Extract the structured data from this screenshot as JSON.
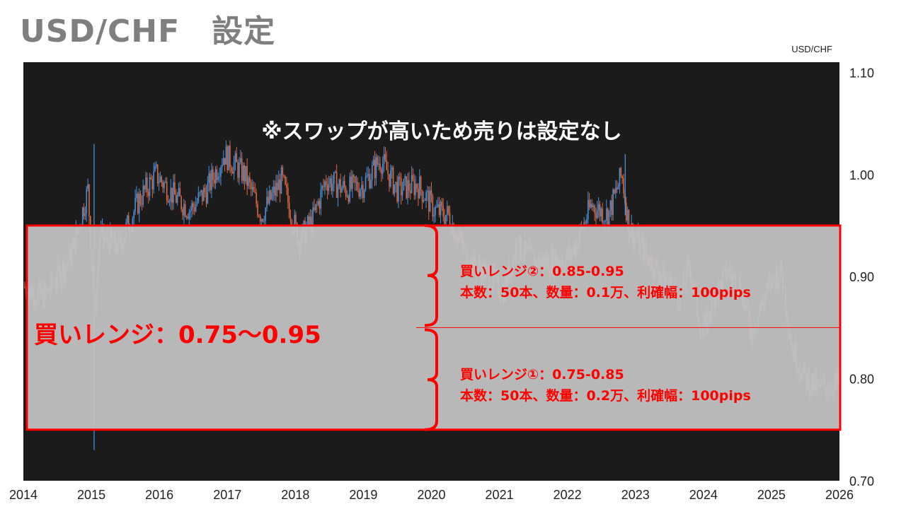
{
  "title": "USD/CHF　設定",
  "chart_data": {
    "type": "candlestick",
    "symbol_label": "USD/CHF",
    "x_ticks": [
      "2014",
      "2015",
      "2016",
      "2017",
      "2018",
      "2019",
      "2020",
      "2021",
      "2022",
      "2023",
      "2024",
      "2025",
      "2026"
    ],
    "xlim": [
      2014,
      2026
    ],
    "y_ticks": [
      "0.70",
      "0.80",
      "0.90",
      "1.00",
      "1.10"
    ],
    "ylim": [
      0.7,
      1.11
    ],
    "grid": false,
    "colors": {
      "background": "#1b1b1b",
      "up": "#4a8fd6",
      "down": "#d9673f",
      "overlay": "#c4c4c4",
      "range": "#ff0000"
    },
    "price_path": [
      [
        2014.0,
        0.89
      ],
      [
        2014.3,
        0.88
      ],
      [
        2014.7,
        0.92
      ],
      [
        2014.95,
        0.985
      ],
      [
        2015.05,
        0.86
      ],
      [
        2015.12,
        0.94
      ],
      [
        2015.4,
        0.93
      ],
      [
        2015.7,
        0.975
      ],
      [
        2015.95,
        1.0
      ],
      [
        2016.2,
        0.98
      ],
      [
        2016.45,
        0.965
      ],
      [
        2016.7,
        0.985
      ],
      [
        2016.95,
        1.02
      ],
      [
        2017.25,
        1.0
      ],
      [
        2017.5,
        0.96
      ],
      [
        2017.8,
        0.995
      ],
      [
        2018.05,
        0.935
      ],
      [
        2018.25,
        0.955
      ],
      [
        2018.45,
        0.995
      ],
      [
        2018.75,
        0.985
      ],
      [
        2019.0,
        0.99
      ],
      [
        2019.25,
        1.015
      ],
      [
        2019.5,
        0.985
      ],
      [
        2019.8,
        0.99
      ],
      [
        2020.05,
        0.965
      ],
      [
        2020.25,
        0.96
      ],
      [
        2020.55,
        0.915
      ],
      [
        2020.85,
        0.9
      ],
      [
        2021.05,
        0.885
      ],
      [
        2021.25,
        0.93
      ],
      [
        2021.5,
        0.915
      ],
      [
        2021.8,
        0.915
      ],
      [
        2022.05,
        0.92
      ],
      [
        2022.35,
        0.97
      ],
      [
        2022.6,
        0.96
      ],
      [
        2022.8,
        1.0
      ],
      [
        2022.9,
        0.95
      ],
      [
        2023.1,
        0.925
      ],
      [
        2023.4,
        0.9
      ],
      [
        2023.65,
        0.88
      ],
      [
        2023.8,
        0.91
      ],
      [
        2023.98,
        0.84
      ],
      [
        2024.15,
        0.88
      ],
      [
        2024.35,
        0.905
      ],
      [
        2024.55,
        0.89
      ],
      [
        2024.7,
        0.845
      ],
      [
        2024.9,
        0.88
      ],
      [
        2025.05,
        0.9
      ],
      [
        2025.15,
        0.905
      ],
      [
        2025.3,
        0.83
      ],
      [
        2025.5,
        0.8
      ],
      [
        2025.7,
        0.79
      ],
      [
        2025.98,
        0.795
      ]
    ],
    "spikes": [
      {
        "x": 2015.04,
        "low": 0.73,
        "high": 1.03
      },
      {
        "x": 2022.85,
        "low": 0.96,
        "high": 1.02
      }
    ],
    "annotations": {
      "note": "※スワップが高いため売りは設定なし",
      "buy_range_label": "買いレンジ：0.75～0.95",
      "buy_range": [
        0.75,
        0.95
      ],
      "midline": 0.85,
      "sub_ranges": [
        {
          "label": "買いレンジ②：0.85-0.95",
          "detail": "本数：50本、数量：0.1万、利確幅：100pips",
          "range": [
            0.85,
            0.95
          ]
        },
        {
          "label": "買いレンジ①：0.75-0.85",
          "detail": "本数：50本、数量：0.2万、利確幅：100pips",
          "range": [
            0.75,
            0.85
          ]
        }
      ]
    }
  }
}
